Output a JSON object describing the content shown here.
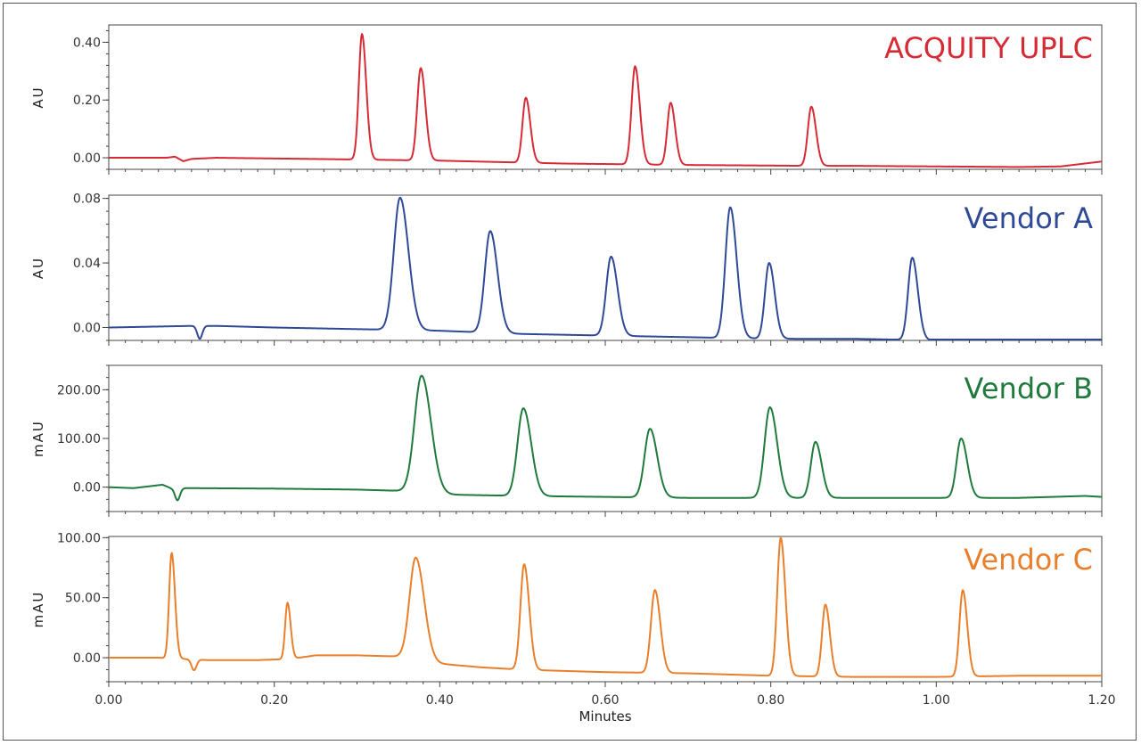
{
  "chart_data": {
    "type": "line",
    "layout": "stacked-panels",
    "xlabel": "Minutes",
    "xlim": [
      0,
      1.2
    ],
    "xticks": [
      0,
      0.2,
      0.4,
      0.6,
      0.8,
      1.0,
      1.2
    ],
    "xtick_labels": [
      "0.00",
      "0.20",
      "0.40",
      "0.60",
      "0.80",
      "1.00",
      "1.20"
    ],
    "panels": [
      {
        "name": "acquity-uplc",
        "title": "ACQUITY UPLC",
        "color": "#d62a35",
        "ylabel": "AU",
        "ylim": [
          -0.04,
          0.46
        ],
        "yticks": [
          0,
          0.2,
          0.4
        ],
        "ytick_labels": [
          "0.00",
          "0.20",
          "0.40"
        ],
        "y_minor_step": 0.04,
        "baseline": [
          [
            0,
            0
          ],
          [
            0.07,
            0
          ],
          [
            0.08,
            0.004
          ],
          [
            0.09,
            -0.012
          ],
          [
            0.1,
            -0.004
          ],
          [
            0.13,
            0
          ],
          [
            0.3,
            -0.006
          ],
          [
            0.4,
            -0.01
          ],
          [
            0.55,
            -0.02
          ],
          [
            0.7,
            -0.025
          ],
          [
            0.85,
            -0.028
          ],
          [
            0.9,
            -0.028
          ],
          [
            1.0,
            -0.03
          ],
          [
            1.1,
            -0.032
          ],
          [
            1.15,
            -0.03
          ],
          [
            1.2,
            -0.013
          ]
        ],
        "peaks": [
          {
            "t": 0.306,
            "h": 0.435,
            "w": 0.0038
          },
          {
            "t": 0.377,
            "h": 0.32,
            "w": 0.0042
          },
          {
            "t": 0.504,
            "h": 0.225,
            "w": 0.004
          },
          {
            "t": 0.636,
            "h": 0.34,
            "w": 0.0042
          },
          {
            "t": 0.679,
            "h": 0.215,
            "w": 0.004
          },
          {
            "t": 0.849,
            "h": 0.205,
            "w": 0.0042
          }
        ]
      },
      {
        "name": "vendor-a",
        "title": "Vendor A",
        "color": "#2e4a96",
        "ylabel": "AU",
        "ylim": [
          -0.008,
          0.082
        ],
        "yticks": [
          0,
          0.04,
          0.08
        ],
        "ytick_labels": [
          "0.00",
          "0.04",
          "0.08"
        ],
        "y_minor_step": 0.008,
        "dip": {
          "t": 0.11,
          "h": -0.008,
          "w": 0.003
        },
        "baseline": [
          [
            0,
            0
          ],
          [
            0.1,
            0.001
          ],
          [
            0.13,
            0.001
          ],
          [
            0.2,
            0
          ],
          [
            0.3,
            -0.001
          ],
          [
            0.4,
            -0.002
          ],
          [
            0.5,
            -0.004
          ],
          [
            0.6,
            -0.005
          ],
          [
            0.7,
            -0.006
          ],
          [
            0.8,
            -0.007
          ],
          [
            0.9,
            -0.007
          ],
          [
            1.0,
            -0.008
          ],
          [
            1.1,
            -0.008
          ],
          [
            1.2,
            -0.009
          ]
        ],
        "peaks": [
          {
            "t": 0.352,
            "h": 0.082,
            "w": 0.0075
          },
          {
            "t": 0.461,
            "h": 0.063,
            "w": 0.0065
          },
          {
            "t": 0.607,
            "h": 0.049,
            "w": 0.0058
          },
          {
            "t": 0.751,
            "h": 0.081,
            "w": 0.0058
          },
          {
            "t": 0.798,
            "h": 0.047,
            "w": 0.005
          },
          {
            "t": 0.971,
            "h": 0.051,
            "w": 0.005
          }
        ]
      },
      {
        "name": "vendor-b",
        "title": "Vendor B",
        "color": "#1f7a3c",
        "ylabel": "mAU",
        "ylim": [
          -50,
          250
        ],
        "yticks": [
          0,
          100,
          200
        ],
        "ytick_labels": [
          "0.00",
          "100.00",
          "200.00"
        ],
        "y_minor_step": 25,
        "dip": {
          "t": 0.083,
          "h": -25,
          "w": 0.003
        },
        "baseline": [
          [
            0,
            0
          ],
          [
            0.03,
            -2
          ],
          [
            0.05,
            2
          ],
          [
            0.065,
            5
          ],
          [
            0.075,
            -2
          ],
          [
            0.1,
            -2
          ],
          [
            0.2,
            -3
          ],
          [
            0.3,
            -5
          ],
          [
            0.36,
            -8
          ],
          [
            0.4,
            -15
          ],
          [
            0.5,
            -18
          ],
          [
            0.6,
            -20
          ],
          [
            0.7,
            -22
          ],
          [
            0.8,
            -22
          ],
          [
            0.9,
            -22
          ],
          [
            1.0,
            -22
          ],
          [
            1.1,
            -22
          ],
          [
            1.18,
            -18
          ],
          [
            1.2,
            -20
          ]
        ],
        "peaks": [
          {
            "t": 0.378,
            "h": 240,
            "w": 0.0085
          },
          {
            "t": 0.501,
            "h": 180,
            "w": 0.007
          },
          {
            "t": 0.654,
            "h": 141,
            "w": 0.0065
          },
          {
            "t": 0.799,
            "h": 186,
            "w": 0.0065
          },
          {
            "t": 0.854,
            "h": 115,
            "w": 0.0055
          },
          {
            "t": 1.03,
            "h": 122,
            "w": 0.0055
          }
        ]
      },
      {
        "name": "vendor-c",
        "title": "Vendor C",
        "color": "#e97f2b",
        "ylabel": "mAU",
        "ylim": [
          -20,
          101
        ],
        "yticks": [
          0,
          50,
          100
        ],
        "ytick_labels": [
          "0.00",
          "50.00",
          "100.00"
        ],
        "y_minor_step": 10,
        "dip": {
          "t": 0.103,
          "h": -9,
          "w": 0.003
        },
        "baseline": [
          [
            0,
            0
          ],
          [
            0.06,
            0
          ],
          [
            0.09,
            -1
          ],
          [
            0.12,
            -2
          ],
          [
            0.18,
            -2
          ],
          [
            0.22,
            -1
          ],
          [
            0.25,
            2
          ],
          [
            0.3,
            2
          ],
          [
            0.35,
            1
          ],
          [
            0.4,
            -5
          ],
          [
            0.45,
            -8
          ],
          [
            0.5,
            -10
          ],
          [
            0.6,
            -12
          ],
          [
            0.7,
            -13
          ],
          [
            0.8,
            -15
          ],
          [
            0.9,
            -16
          ],
          [
            1.0,
            -16
          ],
          [
            1.1,
            -15
          ],
          [
            1.2,
            -15
          ]
        ],
        "peaks": [
          {
            "t": 0.076,
            "h": 88,
            "w": 0.003
          },
          {
            "t": 0.216,
            "h": 47,
            "w": 0.0028
          },
          {
            "t": 0.371,
            "h": 85,
            "w": 0.0075
          },
          {
            "t": 0.502,
            "h": 88,
            "w": 0.0045
          },
          {
            "t": 0.66,
            "h": 69,
            "w": 0.0048
          },
          {
            "t": 0.812,
            "h": 115,
            "w": 0.0042
          },
          {
            "t": 0.866,
            "h": 60,
            "w": 0.004
          },
          {
            "t": 1.032,
            "h": 72,
            "w": 0.004
          }
        ]
      }
    ]
  }
}
